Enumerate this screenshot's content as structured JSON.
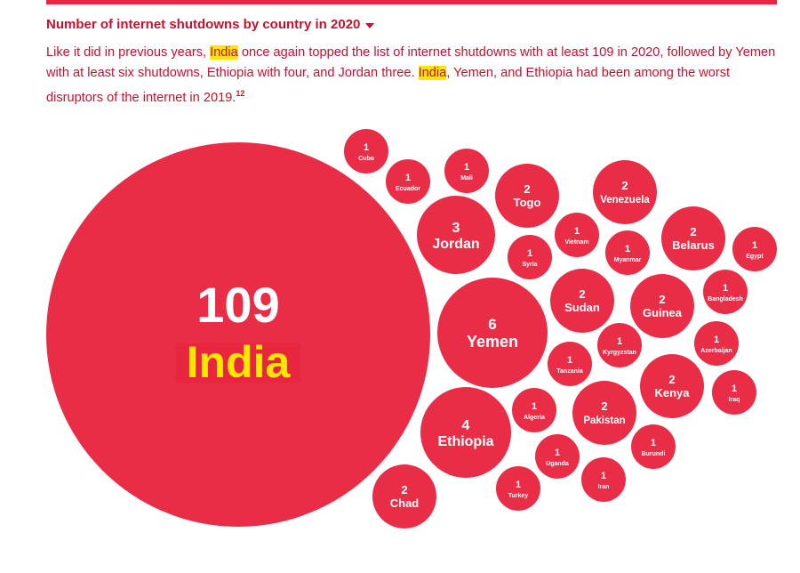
{
  "heading": "Number of internet shutdowns by country in 2020",
  "intro": {
    "p1": "Like it did in previous years, ",
    "hl1": "India",
    "p2": " once again topped the list of internet shutdowns with at least 109 in 2020, followed by Yemen with at least six shutdowns, Ethiopia with four, and Jordan three. ",
    "hl2": "India",
    "p3": ", Yemen, and Ethiopia had been among the worst disruptors of the internet in 2019.",
    "footnote": "12"
  },
  "colors": {
    "bubble": "#ea2d47",
    "text_red": "#c8102e",
    "highlight": "#ffe600",
    "label_bg": "#e8263f"
  },
  "chart_data": {
    "type": "bubble",
    "title": "Number of internet shutdowns by country in 2020",
    "countries": [
      {
        "name": "India",
        "value": 109
      },
      {
        "name": "Yemen",
        "value": 6
      },
      {
        "name": "Ethiopia",
        "value": 4
      },
      {
        "name": "Jordan",
        "value": 3
      },
      {
        "name": "Togo",
        "value": 2
      },
      {
        "name": "Venezuela",
        "value": 2
      },
      {
        "name": "Belarus",
        "value": 2
      },
      {
        "name": "Sudan",
        "value": 2
      },
      {
        "name": "Guinea",
        "value": 2
      },
      {
        "name": "Kenya",
        "value": 2
      },
      {
        "name": "Pakistan",
        "value": 2
      },
      {
        "name": "Chad",
        "value": 2
      },
      {
        "name": "Cuba",
        "value": 1
      },
      {
        "name": "Ecuador",
        "value": 1
      },
      {
        "name": "Mali",
        "value": 1
      },
      {
        "name": "Vietnam",
        "value": 1
      },
      {
        "name": "Syria",
        "value": 1
      },
      {
        "name": "Myanmar",
        "value": 1
      },
      {
        "name": "Egypt",
        "value": 1
      },
      {
        "name": "Bangladesh",
        "value": 1
      },
      {
        "name": "Kyrgyzstan",
        "value": 1
      },
      {
        "name": "Azerbaijan",
        "value": 1
      },
      {
        "name": "Tanzania",
        "value": 1
      },
      {
        "name": "Iraq",
        "value": 1
      },
      {
        "name": "Algeria",
        "value": 1
      },
      {
        "name": "Burundi",
        "value": 1
      },
      {
        "name": "Uganda",
        "value": 1
      },
      {
        "name": "Iran",
        "value": 1
      },
      {
        "name": "Turkey",
        "value": 1
      }
    ]
  }
}
